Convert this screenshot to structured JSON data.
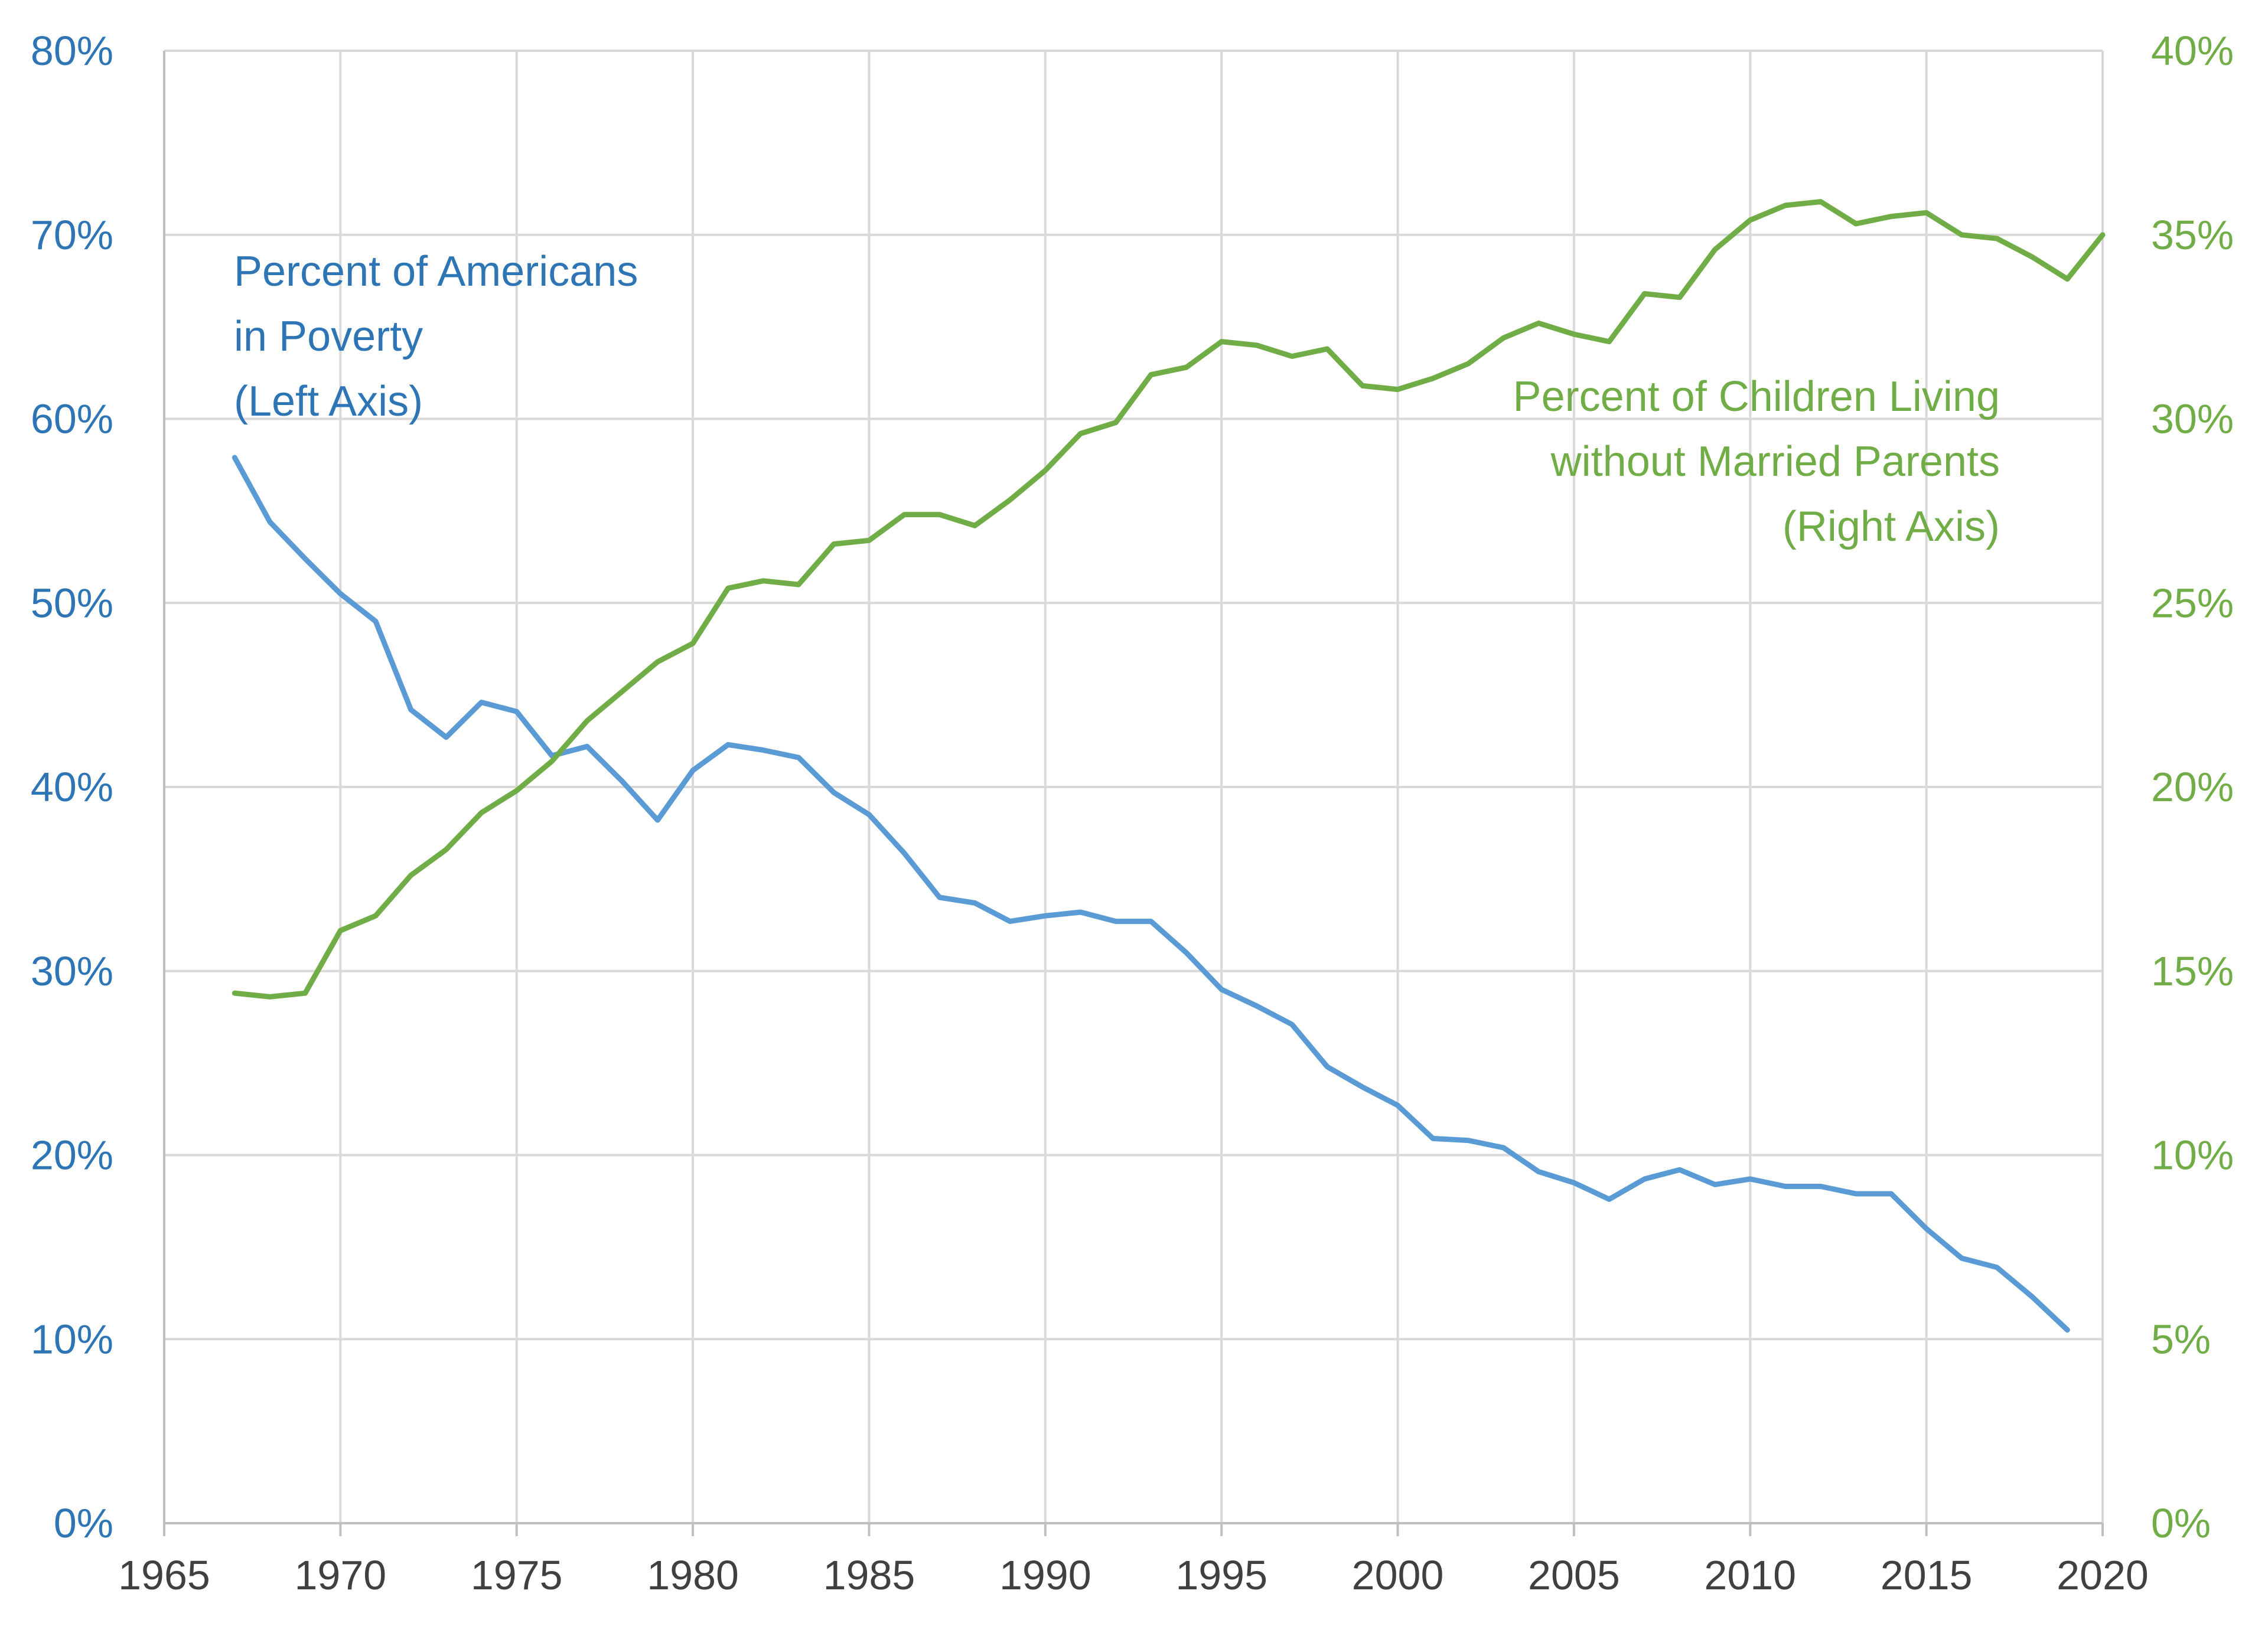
{
  "chart_data": {
    "type": "line",
    "title": "",
    "xlabel": "",
    "ylabel": "",
    "y2label": "",
    "xlim": [
      1965,
      2020
    ],
    "ylim": [
      0,
      80
    ],
    "y2lim": [
      0,
      40
    ],
    "x_ticks": [
      1965,
      1970,
      1975,
      1980,
      1985,
      1990,
      1995,
      2000,
      2005,
      2010,
      2015,
      2020
    ],
    "x_tick_labels": [
      "1965",
      "1970",
      "1975",
      "1980",
      "1985",
      "1990",
      "1995",
      "2000",
      "2005",
      "2010",
      "2015",
      "2020"
    ],
    "y_ticks": [
      0,
      10,
      20,
      30,
      40,
      50,
      60,
      70,
      80
    ],
    "y_tick_labels": [
      "0%",
      "10%",
      "20%",
      "30%",
      "40%",
      "50%",
      "60%",
      "70%",
      "80%"
    ],
    "y2_ticks": [
      0,
      5,
      10,
      15,
      20,
      25,
      30,
      35,
      40
    ],
    "y2_tick_labels": [
      "0%",
      "5%",
      "10%",
      "15%",
      "20%",
      "25%",
      "30%",
      "35%",
      "40%"
    ],
    "grid": true,
    "legend": "none",
    "colors": {
      "left": "#2e75b6",
      "right": "#70ad47",
      "line_left": "#5b9bd5",
      "line_right": "#70ad47"
    },
    "annotations": {
      "left": [
        "Percent of Americans",
        "in Poverty",
        "(Left Axis)"
      ],
      "right": [
        "Percent of Children Living",
        "without Married Parents",
        "(Right Axis)"
      ]
    },
    "series": [
      {
        "axis": "left",
        "x": [
          1967,
          1968,
          1969,
          1970,
          1971,
          1972,
          1973,
          1974,
          1975,
          1976,
          1977,
          1978,
          1979,
          1980,
          1981,
          1982,
          1983,
          1984,
          1985,
          1986,
          1987,
          1988,
          1989,
          1990,
          1991,
          1992,
          1993,
          1994,
          1995,
          1996,
          1997,
          1998,
          1999,
          2000,
          2001,
          2002,
          2003,
          2004,
          2005,
          2006,
          2007,
          2008,
          2009,
          2010,
          2011,
          2012,
          2013,
          2014,
          2015,
          2016,
          2017,
          2018,
          2019
        ],
        "values": [
          57.9,
          54.4,
          52.4,
          50.5,
          49.0,
          44.2,
          42.7,
          44.6,
          44.1,
          41.7,
          42.2,
          40.3,
          38.2,
          40.9,
          42.3,
          42.0,
          41.6,
          39.7,
          38.5,
          36.4,
          34.0,
          33.7,
          32.7,
          33.0,
          33.2,
          32.7,
          32.7,
          31.0,
          29.0,
          28.1,
          27.1,
          24.8,
          23.7,
          22.7,
          20.9,
          20.8,
          20.4,
          19.1,
          18.5,
          17.6,
          18.7,
          19.2,
          18.4,
          18.7,
          18.3,
          18.3,
          17.9,
          17.9,
          16.0,
          14.4,
          13.9,
          12.3,
          10.5
        ]
      },
      {
        "axis": "right",
        "x": [
          1967,
          1968,
          1969,
          1970,
          1971,
          1972,
          1973,
          1974,
          1975,
          1976,
          1977,
          1978,
          1979,
          1980,
          1981,
          1982,
          1983,
          1984,
          1985,
          1986,
          1987,
          1988,
          1989,
          1990,
          1991,
          1992,
          1993,
          1994,
          1995,
          1996,
          1997,
          1998,
          1999,
          2000,
          2001,
          2002,
          2003,
          2004,
          2005,
          2006,
          2007,
          2008,
          2009,
          2010,
          2011,
          2012,
          2013,
          2014,
          2015,
          2016,
          2017,
          2018,
          2019,
          2020
        ],
        "values": [
          14.4,
          14.3,
          14.4,
          16.1,
          16.5,
          17.6,
          18.3,
          19.3,
          19.9,
          20.7,
          21.8,
          22.6,
          23.4,
          23.9,
          25.4,
          25.6,
          25.5,
          26.6,
          26.7,
          27.4,
          27.4,
          27.1,
          27.8,
          28.6,
          29.6,
          29.9,
          31.2,
          31.4,
          32.1,
          32.0,
          31.7,
          31.9,
          30.9,
          30.8,
          31.1,
          31.5,
          32.2,
          32.6,
          32.3,
          32.1,
          33.4,
          33.3,
          34.6,
          35.4,
          35.8,
          35.9,
          35.3,
          35.5,
          35.6,
          35.0,
          34.9,
          34.4,
          33.8,
          35.0
        ]
      }
    ]
  }
}
